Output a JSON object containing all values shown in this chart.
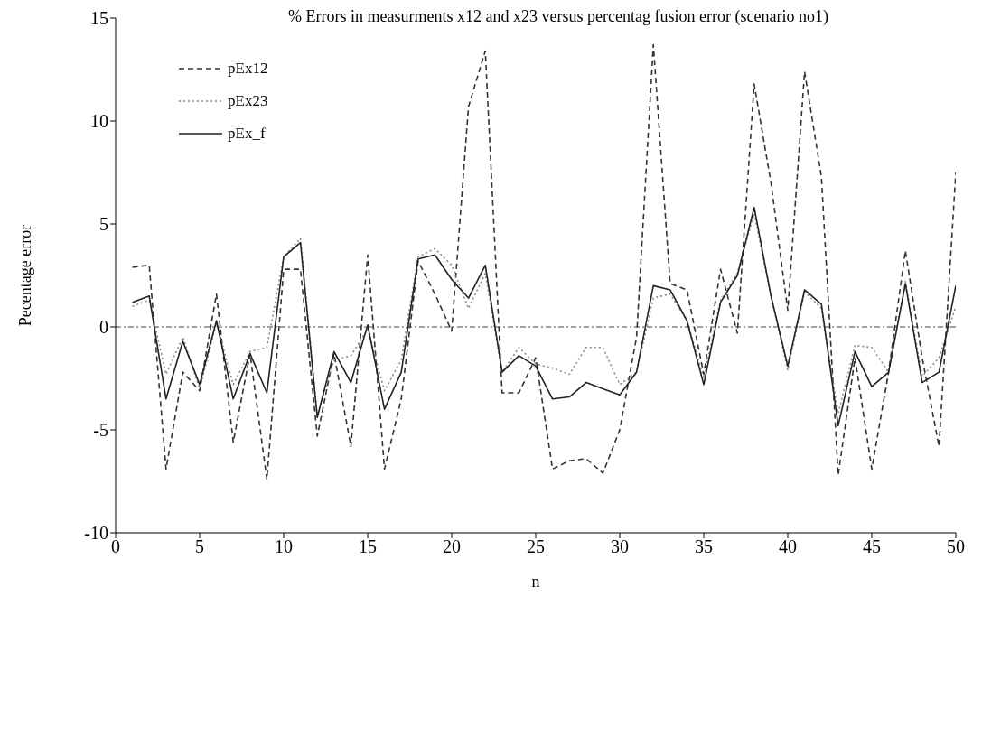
{
  "chart_data": {
    "type": "line",
    "title": "% Errors in measurments x12 and x23 versus percentag fusion error (scenario no1)",
    "xlabel": "n",
    "ylabel": "Pecentage error",
    "x": [
      1,
      2,
      3,
      4,
      5,
      6,
      7,
      8,
      9,
      10,
      11,
      12,
      13,
      14,
      15,
      16,
      17,
      18,
      19,
      20,
      21,
      22,
      23,
      24,
      25,
      26,
      27,
      28,
      29,
      30,
      31,
      32,
      33,
      34,
      35,
      36,
      37,
      38,
      39,
      40,
      41,
      42,
      43,
      44,
      45,
      46,
      47,
      48,
      49,
      50
    ],
    "series": [
      {
        "name": "pEx12",
        "color": "#333333",
        "line_style": "dashed",
        "values": [
          2.9,
          3.0,
          -6.9,
          -2.2,
          -3.1,
          1.6,
          -5.6,
          -1.3,
          -7.4,
          2.8,
          2.8,
          -5.3,
          -1.3,
          -5.8,
          3.5,
          -6.9,
          -3.5,
          3.2,
          1.6,
          -0.2,
          10.7,
          13.4,
          -3.2,
          -3.2,
          -1.5,
          -6.9,
          -6.5,
          -6.4,
          -7.1,
          -5.0,
          -0.5,
          13.7,
          2.1,
          1.8,
          -2.3,
          2.8,
          -0.3,
          11.8,
          7.0,
          0.8,
          12.4,
          7.3,
          -7.2,
          -1.5,
          -6.9,
          -2.2,
          3.7,
          -1.5,
          -5.8,
          7.5
        ]
      },
      {
        "name": "pEx23",
        "color": "#888888",
        "line_style": "dotted",
        "values": [
          1.0,
          1.3,
          -2.3,
          -0.5,
          -3.0,
          0.2,
          -2.8,
          -1.2,
          -1.0,
          3.4,
          4.3,
          -4.3,
          -1.6,
          -1.4,
          -0.1,
          -3.1,
          -1.6,
          3.4,
          3.8,
          3.0,
          0.9,
          2.6,
          -2.2,
          -1.0,
          -1.8,
          -2.0,
          -2.3,
          -1.0,
          -1.0,
          -2.8,
          -2.2,
          1.4,
          1.6,
          0.3,
          -2.5,
          1.3,
          2.6,
          5.5,
          1.5,
          -2.1,
          1.7,
          0.9,
          -4.2,
          -0.9,
          -1.0,
          -2.2,
          2.2,
          -2.4,
          -1.5,
          1.0
        ]
      },
      {
        "name": "pEx_f",
        "color": "#222222",
        "line_style": "solid",
        "values": [
          1.2,
          1.5,
          -3.5,
          -0.7,
          -2.8,
          0.3,
          -3.5,
          -1.3,
          -3.2,
          3.4,
          4.1,
          -4.4,
          -1.2,
          -2.7,
          0.1,
          -4.0,
          -2.2,
          3.3,
          3.5,
          2.3,
          1.4,
          3.0,
          -2.2,
          -1.4,
          -1.9,
          -3.5,
          -3.4,
          -2.7,
          -3.0,
          -3.3,
          -2.2,
          2.0,
          1.8,
          0.3,
          -2.8,
          1.2,
          2.5,
          5.8,
          1.5,
          -1.9,
          1.8,
          1.1,
          -4.8,
          -1.2,
          -2.9,
          -2.2,
          2.1,
          -2.7,
          -2.2,
          2.0
        ]
      }
    ],
    "xlim": [
      0,
      50
    ],
    "xticks": [
      0,
      5,
      10,
      15,
      20,
      25,
      30,
      35,
      40,
      45,
      50
    ],
    "ylim": [
      -10,
      15
    ],
    "yticks": [
      -10,
      -5,
      0,
      5,
      10,
      15
    ],
    "ref_lines": [
      {
        "axis": "y",
        "value": 0,
        "color": "#444444",
        "line_style": "dashdot"
      }
    ],
    "grid": false,
    "legend": "top left",
    "marker": "none"
  }
}
